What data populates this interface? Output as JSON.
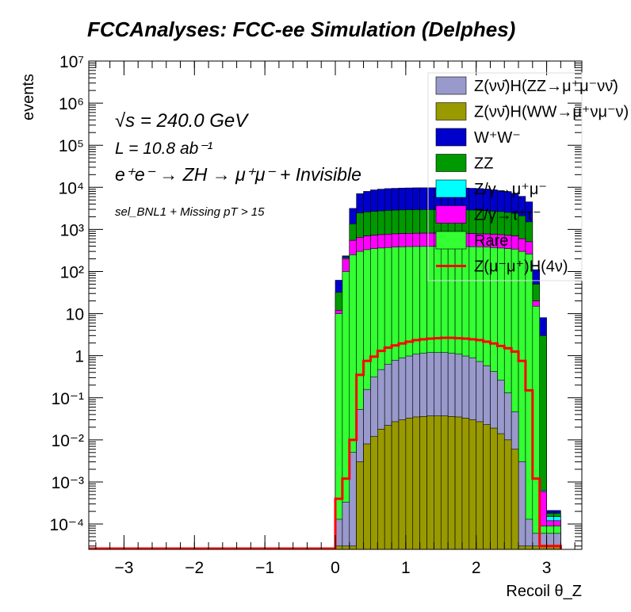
{
  "chart_data": {
    "type": "histogram_stacked_log",
    "title": "FCCAnalyses: FCC-ee Simulation (Delphes)",
    "xlabel": "Recoil θ_Z",
    "ylabel": "events",
    "xlim": [
      -3.5,
      3.5
    ],
    "ylim": [
      2.5e-05,
      10000000.0
    ],
    "yscale": "log",
    "grid": false,
    "legend_position": "top-right",
    "x_ticks": [
      -3,
      -2,
      -1,
      0,
      1,
      2,
      3
    ],
    "y_ticks": [
      "10⁻⁴",
      "10⁻³",
      "10⁻²",
      "10⁻¹",
      "1",
      "10",
      "10²",
      "10³",
      "10⁴",
      "10⁵",
      "10⁶",
      "10⁷"
    ],
    "annotations": {
      "sqrt_s": "√s = 240.0 GeV",
      "lumi": "L = 10.8 ab⁻¹",
      "process": "e⁺e⁻ → ZH → μ⁺μ⁻ + Invisible",
      "selection": "sel_BNL1 + Missing pT > 15"
    },
    "bins": {
      "start": 0.0,
      "width": 0.1,
      "count": 32
    },
    "series": [
      {
        "name": "Z(νν̄)H(WW→μ⁺νμ⁻ν)",
        "color": "#999900",
        "values": [
          3e-05,
          3e-05,
          3e-05,
          0.003,
          0.008,
          0.012,
          0.018,
          0.022,
          0.027,
          0.03,
          0.033,
          0.035,
          0.036,
          0.037,
          0.037,
          0.037,
          0.036,
          0.035,
          0.033,
          0.03,
          0.027,
          0.023,
          0.019,
          0.014,
          0.01,
          0.006,
          3e-05,
          3e-05,
          3e-05,
          3e-05,
          3e-05,
          3e-05
        ]
      },
      {
        "name": "Z(νν̄)H(ZZ→μ⁺μ⁻νν̄)",
        "color": "#9999cc",
        "values": [
          0.0001,
          0.0003,
          0.005,
          0.05,
          0.15,
          0.3,
          0.45,
          0.6,
          0.75,
          0.85,
          0.95,
          1.05,
          1.1,
          1.15,
          1.15,
          1.15,
          1.1,
          1.05,
          0.95,
          0.85,
          0.7,
          0.55,
          0.4,
          0.25,
          0.12,
          0.04,
          0.003,
          0.0001,
          3e-05,
          3e-05,
          3e-05,
          3e-05
        ]
      },
      {
        "name": "Rare",
        "color": "#33ff33",
        "values": [
          10,
          100,
          250,
          300,
          330,
          350,
          360,
          370,
          380,
          385,
          390,
          392,
          393,
          394,
          395,
          395,
          394,
          393,
          390,
          388,
          385,
          380,
          370,
          360,
          350,
          340,
          300,
          260,
          15,
          3e-05,
          3e-05,
          3e-05
        ]
      },
      {
        "name": "Z/γ→τ⁺τ⁻",
        "color": "#ff00ff",
        "values": [
          2,
          100,
          300,
          350,
          370,
          380,
          390,
          400,
          405,
          410,
          415,
          418,
          420,
          420,
          420,
          420,
          418,
          416,
          414,
          410,
          405,
          400,
          395,
          390,
          380,
          360,
          300,
          250,
          5,
          0.0005,
          3e-05,
          3e-05
        ]
      },
      {
        "name": "Z/γ→μ⁺μ⁻",
        "color": "#00ffff",
        "values": [
          3e-05,
          3e-05,
          3e-05,
          3e-05,
          3e-05,
          3e-05,
          3e-05,
          3e-05,
          3e-05,
          3e-05,
          3e-05,
          3e-05,
          3e-05,
          3e-05,
          3e-05,
          3e-05,
          3e-05,
          3e-05,
          3e-05,
          3e-05,
          3e-05,
          3e-05,
          3e-05,
          3e-05,
          3e-05,
          3e-05,
          3e-05,
          3e-05,
          3e-05,
          3e-05,
          3e-05,
          3e-05
        ]
      },
      {
        "name": "ZZ",
        "color": "#009900",
        "values": [
          20,
          15,
          800,
          1800,
          1900,
          1950,
          2000,
          2050,
          2080,
          2100,
          2110,
          2120,
          2130,
          2130,
          2130,
          2130,
          2120,
          2110,
          2100,
          2080,
          2050,
          2000,
          1950,
          1900,
          1800,
          1700,
          1500,
          1000,
          30,
          3,
          3e-05,
          3e-05
        ]
      },
      {
        "name": "W⁺W⁻",
        "color": "#0000cc",
        "values": [
          30,
          20,
          1800,
          4600,
          5400,
          6000,
          6300,
          6500,
          6600,
          6700,
          6750,
          6800,
          6800,
          6800,
          6800,
          6800,
          6800,
          6750,
          6700,
          6600,
          6500,
          6300,
          6000,
          5700,
          5400,
          4800,
          4000,
          3000,
          60,
          5,
          3e-05,
          3e-05
        ]
      }
    ],
    "signal": {
      "name": "Z(μ⁻μ⁺)H(4ν)",
      "color": "#ff0000",
      "values": [
        0.0004,
        0.0012,
        0.01,
        0.35,
        0.75,
        0.95,
        1.3,
        1.55,
        1.75,
        1.95,
        2.15,
        2.35,
        2.45,
        2.55,
        2.6,
        2.65,
        2.65,
        2.6,
        2.55,
        2.45,
        2.35,
        2.15,
        1.95,
        1.7,
        1.5,
        1.25,
        0.75,
        0.15,
        0.0012,
        3e-05,
        3e-05,
        3e-05
      ]
    },
    "legend_order": [
      "Z(νν̄)H(ZZ→μ⁺μ⁻νν̄)",
      "Z(νν̄)H(WW→μ⁺νμ⁻ν)",
      "W⁺W⁻",
      "ZZ",
      "Z/γ→μ⁺μ⁻",
      "Z/γ→τ⁺τ⁻",
      "Rare",
      "Z(μ⁻μ⁺)H(4ν)"
    ]
  }
}
